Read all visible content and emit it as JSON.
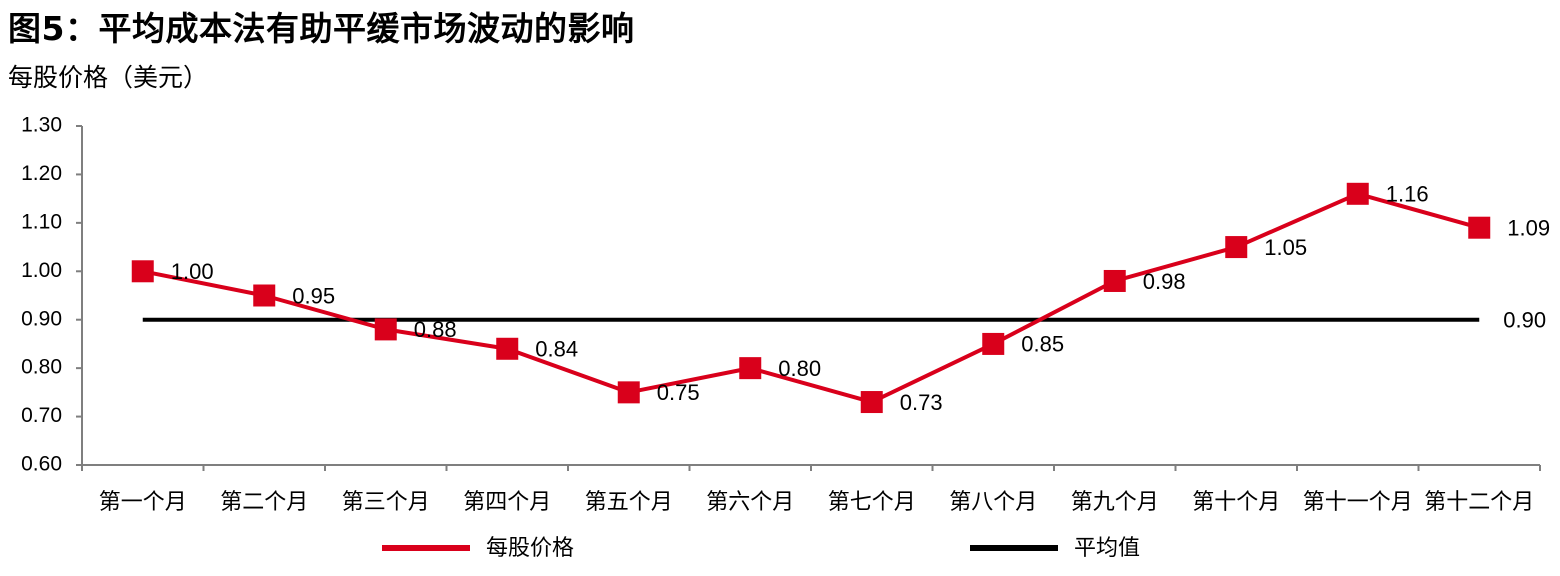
{
  "title": "图5：平均成本法有助平缓市场波动的影响",
  "unit_label": "每股价格（美元）",
  "chart_data": {
    "type": "line",
    "title": "图5：平均成本法有助平缓市场波动的影响",
    "ylabel": "每股价格（美元）",
    "xlabel": "",
    "categories": [
      "第一个月",
      "第二个月",
      "第三个月",
      "第四个月",
      "第五个月",
      "第六个月",
      "第七个月",
      "第八个月",
      "第九个月",
      "第十个月",
      "第十一个月",
      "第十二个月"
    ],
    "ylim": [
      0.6,
      1.3
    ],
    "yticks": [
      "0.60",
      "0.70",
      "0.80",
      "0.90",
      "1.00",
      "1.10",
      "1.20",
      "1.30"
    ],
    "grid": false,
    "legend_position": "bottom",
    "series": [
      {
        "name": "每股价格",
        "color": "#d9001b",
        "marker": "square",
        "values": [
          1.0,
          0.95,
          0.88,
          0.84,
          0.75,
          0.8,
          0.73,
          0.85,
          0.98,
          1.05,
          1.16,
          1.09
        ],
        "labels": [
          "1.00",
          "0.95",
          "0.88",
          "0.84",
          "0.75",
          "0.80",
          "0.73",
          "0.85",
          "0.98",
          "1.05",
          "1.16",
          "1.09"
        ]
      },
      {
        "name": "平均值",
        "color": "#000000",
        "value": 0.9,
        "label": "0.90"
      }
    ]
  }
}
